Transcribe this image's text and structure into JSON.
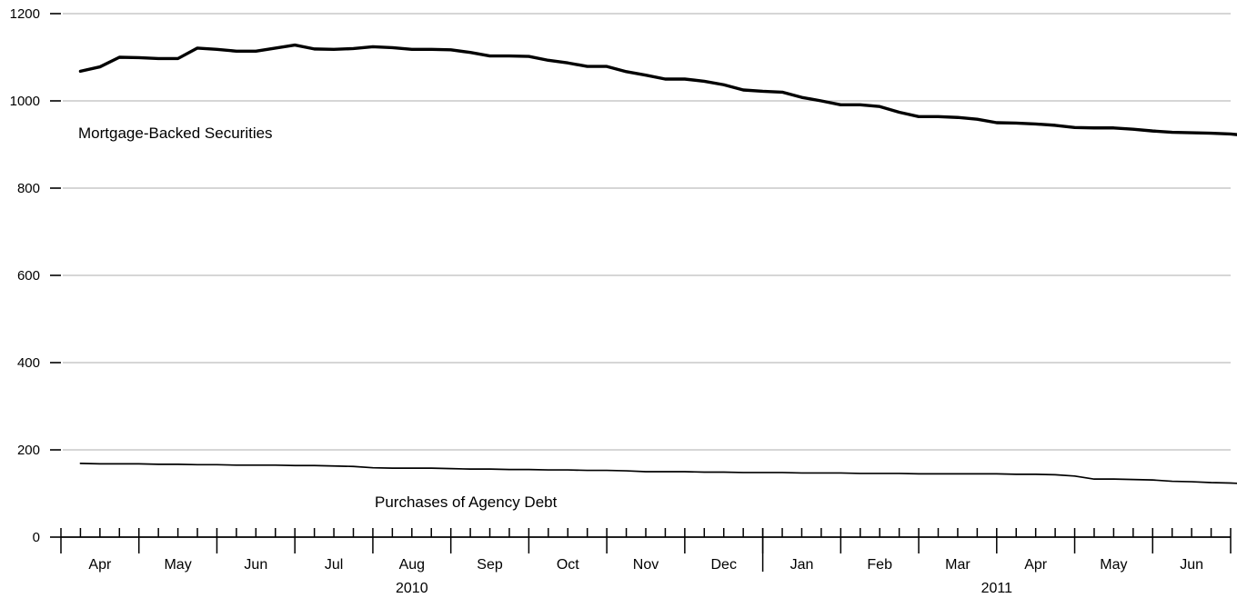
{
  "chart_data": {
    "type": "line",
    "title": "",
    "xlabel": "",
    "ylabel": "",
    "ylim": [
      0,
      1200
    ],
    "yticks": [
      0,
      200,
      400,
      600,
      800,
      1000,
      1200
    ],
    "ytick_labels": [
      "0",
      "200",
      "400",
      "600",
      "800",
      "1000",
      "1200"
    ],
    "grid": true,
    "grid_axis": "y",
    "x_axis": {
      "unit": "weekly",
      "start": "2010-03-31",
      "end": "2011-06-29",
      "months": [
        {
          "label": "Apr",
          "weeks": 4
        },
        {
          "label": "May",
          "weeks": 4
        },
        {
          "label": "Jun",
          "weeks": 4
        },
        {
          "label": "Jul",
          "weeks": 4
        },
        {
          "label": "Aug",
          "weeks": 4
        },
        {
          "label": "Sep",
          "weeks": 4
        },
        {
          "label": "Oct",
          "weeks": 4
        },
        {
          "label": "Nov",
          "weeks": 4
        },
        {
          "label": "Dec",
          "weeks": 4
        },
        {
          "label": "Jan",
          "weeks": 4
        },
        {
          "label": "Feb",
          "weeks": 4
        },
        {
          "label": "Mar",
          "weeks": 4
        },
        {
          "label": "Apr",
          "weeks": 4
        },
        {
          "label": "May",
          "weeks": 4
        },
        {
          "label": "Jun",
          "weeks": 4
        }
      ],
      "years": [
        {
          "label": "2010",
          "first_month": 0,
          "last_month": 8
        },
        {
          "label": "2011",
          "first_month": 9,
          "last_month": 14
        }
      ]
    },
    "series": [
      {
        "name": "Mortgage-Backed Securities",
        "label": "Mortgage-Backed Securities",
        "values": [
          1068,
          1078,
          1100,
          1099,
          1097,
          1097,
          1121,
          1118,
          1114,
          1114,
          1121,
          1128,
          1119,
          1118,
          1120,
          1124,
          1122,
          1118,
          1118,
          1117,
          1111,
          1103,
          1103,
          1102,
          1093,
          1087,
          1079,
          1079,
          1067,
          1059,
          1050,
          1050,
          1045,
          1037,
          1025,
          1022,
          1020,
          1008,
          1000,
          991,
          991,
          987,
          974,
          964,
          964,
          962,
          958,
          950,
          949,
          947,
          944,
          939,
          938,
          938,
          935,
          931,
          928,
          927,
          926,
          924,
          920,
          918,
          918,
          917,
          914
        ]
      },
      {
        "name": "Purchases of Agency Debt",
        "label": "Purchases of Agency Debt",
        "values": [
          169,
          168,
          168,
          168,
          167,
          167,
          166,
          166,
          165,
          165,
          165,
          164,
          164,
          163,
          162,
          159,
          158,
          158,
          158,
          157,
          156,
          156,
          155,
          155,
          154,
          154,
          153,
          153,
          152,
          150,
          150,
          150,
          149,
          149,
          148,
          148,
          148,
          147,
          147,
          147,
          146,
          146,
          146,
          145,
          145,
          145,
          145,
          145,
          144,
          144,
          143,
          140,
          133,
          133,
          132,
          131,
          128,
          127,
          125,
          124,
          122,
          120,
          120,
          120,
          119
        ]
      }
    ]
  }
}
